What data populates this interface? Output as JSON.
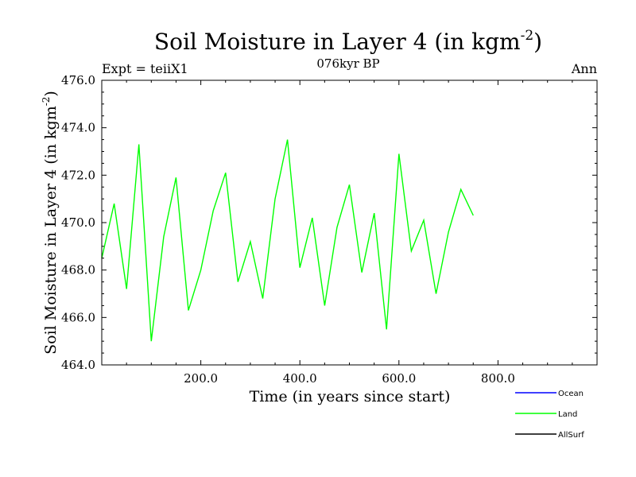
{
  "chart_data": {
    "type": "line",
    "title": "Soil Moisture in Layer 4 (in kgm",
    "title_exp": "-2",
    "title_close": ")",
    "subtitle": "076kyr BP",
    "left_note": "Expt = teiiX1",
    "right_note": "Ann",
    "xlabel": "Time (in years since start)",
    "ylabel": "Soil Moisture in Layer 4 (in kgm",
    "ylabel_exp": "-2",
    "ylabel_close": ")",
    "xlim": [
      0,
      1000
    ],
    "ylim": [
      464,
      476
    ],
    "xticks": [
      200,
      400,
      600,
      800
    ],
    "xtick_labels": [
      "200.0",
      "400.0",
      "600.0",
      "800.0"
    ],
    "yticks": [
      464,
      466,
      468,
      470,
      472,
      474,
      476
    ],
    "ytick_labels": [
      "464.0",
      "466.0",
      "468.0",
      "470.0",
      "472.0",
      "474.0",
      "476.0"
    ],
    "grid": false,
    "legend_position": "bottom-right",
    "series": [
      {
        "name": "Ocean",
        "color": "#0000ff",
        "values": []
      },
      {
        "name": "Land",
        "color": "#00ff00",
        "x_start": 0,
        "x_step": 25,
        "values": [
          468.5,
          470.8,
          467.2,
          473.3,
          465.0,
          469.4,
          471.9,
          466.3,
          468.0,
          470.5,
          472.1,
          467.5,
          469.2,
          466.8,
          471.0,
          473.5,
          468.1,
          470.2,
          466.5,
          469.8,
          471.6,
          467.9,
          470.4,
          465.5,
          472.9,
          468.8,
          470.1,
          467.0,
          469.6,
          471.4,
          470.3
        ]
      },
      {
        "name": "AllSurf",
        "color": "#000000",
        "values": []
      }
    ]
  }
}
